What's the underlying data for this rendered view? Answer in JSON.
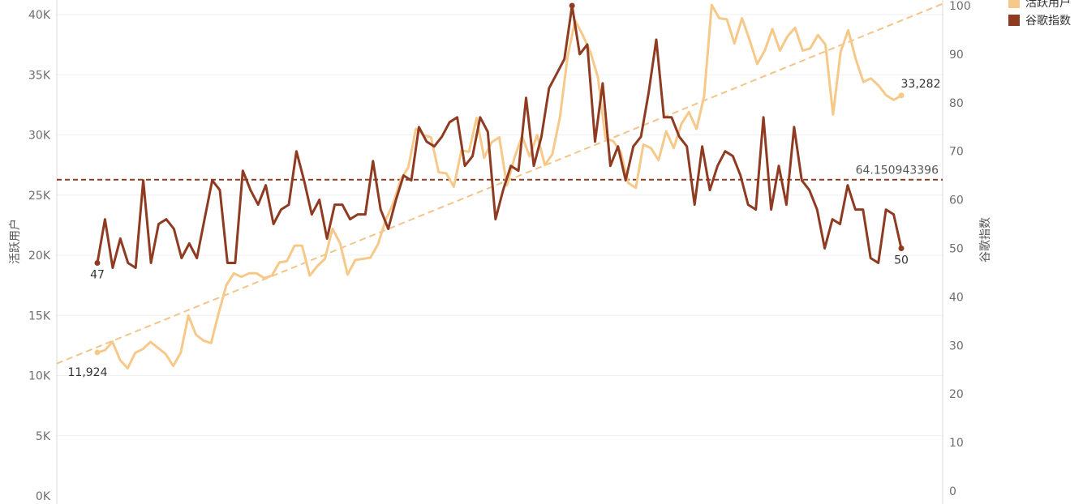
{
  "chart_data": {
    "type": "line",
    "xlabel": "",
    "ylabel": "活跃用户",
    "y2label": "谷歌指数",
    "ylim": [
      0,
      40000
    ],
    "y2lim": [
      0,
      100
    ],
    "y_ticks": [
      "0K",
      "5K",
      "10K",
      "15K",
      "20K",
      "25K",
      "30K",
      "35K",
      "40K"
    ],
    "y2_ticks": [
      "0",
      "10",
      "20",
      "30",
      "40",
      "50",
      "60",
      "70",
      "80",
      "90",
      "100"
    ],
    "grid": true,
    "legend_position": "top-right",
    "series": [
      {
        "name": "活跃用户",
        "axis": "left",
        "color": "#f6c98a",
        "values": [
          11924,
          12100,
          12800,
          11300,
          10600,
          11900,
          12200,
          12800,
          12300,
          11800,
          10800,
          11900,
          15000,
          13400,
          12900,
          12700,
          15200,
          17500,
          18500,
          18200,
          18500,
          18500,
          18100,
          18300,
          19400,
          19500,
          20800,
          20800,
          18300,
          19100,
          19700,
          22200,
          21000,
          18400,
          19600,
          19700,
          19800,
          20900,
          22900,
          24300,
          26300,
          27300,
          30500,
          30000,
          29800,
          26900,
          26800,
          25700,
          28700,
          28600,
          31400,
          28100,
          29400,
          29800,
          25800,
          28100,
          29900,
          28200,
          30000,
          27500,
          28400,
          31500,
          36500,
          39500,
          38300,
          36900,
          34800,
          29700,
          29500,
          28600,
          26000,
          25600,
          29200,
          28900,
          27900,
          30300,
          28900,
          30900,
          31900,
          30500,
          33200,
          40800,
          39700,
          39600,
          37600,
          39700,
          37900,
          35900,
          37000,
          38800,
          37000,
          38200,
          38900,
          37000,
          37200,
          38300,
          37500,
          31700,
          36900,
          38700,
          36300,
          34400,
          34700,
          34100,
          33300,
          32900,
          33282
        ],
        "start_label": "11,924",
        "end_label": "33,282"
      },
      {
        "name": "谷歌指数",
        "axis": "right",
        "color": "#8e3b22",
        "values": [
          47,
          56,
          46,
          52,
          47,
          46,
          64,
          47,
          55,
          56,
          54,
          48,
          51,
          48,
          56,
          64,
          62,
          47,
          47,
          66,
          62,
          59,
          63,
          55,
          58,
          59,
          70,
          64,
          57,
          60,
          52,
          59,
          59,
          56,
          57,
          57,
          68,
          58,
          54,
          60,
          65,
          64,
          75,
          72,
          71,
          73,
          76,
          77,
          67,
          69,
          77,
          74,
          56,
          62,
          67,
          66,
          81,
          67,
          73,
          83,
          86,
          89,
          100,
          90,
          92,
          72,
          84,
          67,
          71,
          64,
          71,
          73,
          82,
          93,
          77,
          77,
          73,
          71,
          59,
          71,
          62,
          67,
          70,
          69,
          65,
          59,
          58,
          77,
          58,
          67,
          59,
          75,
          64,
          62,
          58,
          50,
          56,
          55,
          63,
          58,
          58,
          48,
          47,
          58,
          57,
          50
        ],
        "start_label": "47",
        "end_label": "50",
        "reference_line": 64.150943396,
        "reference_label": "64.150943396"
      }
    ],
    "trend_line": {
      "series": "活跃用户",
      "start_value": 11000,
      "end_value": 40900
    },
    "legend": [
      {
        "label": "活跃用户",
        "color": "#f6c98a"
      },
      {
        "label": "谷歌指数",
        "color": "#8e3b22"
      }
    ]
  }
}
